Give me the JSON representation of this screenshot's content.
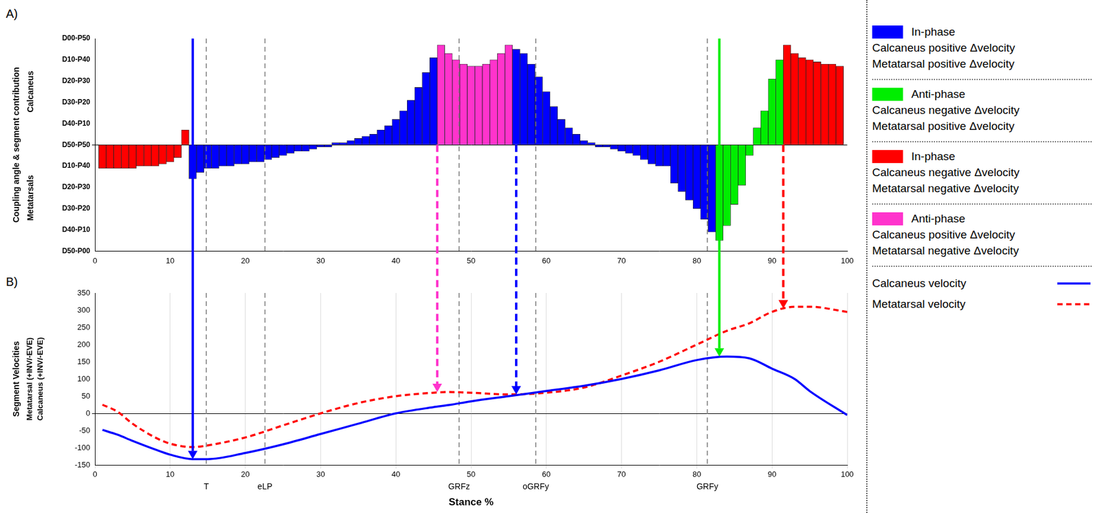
{
  "chart_data": [
    {
      "panel": "A)",
      "type": "bar",
      "y_label": "Coupling angle & segment contribution",
      "y_upper_label": "Calcaneus",
      "y_lower_label": "Metatarsals",
      "x": [
        1,
        2,
        3,
        4,
        5,
        6,
        7,
        8,
        9,
        10,
        11,
        12,
        13,
        14,
        15,
        16,
        17,
        18,
        19,
        20,
        21,
        22,
        23,
        24,
        25,
        26,
        27,
        28,
        29,
        30,
        31,
        32,
        33,
        34,
        35,
        36,
        37,
        38,
        39,
        40,
        41,
        42,
        43,
        44,
        45,
        46,
        47,
        48,
        49,
        50,
        51,
        52,
        53,
        54,
        55,
        56,
        57,
        58,
        59,
        60,
        61,
        62,
        63,
        64,
        65,
        66,
        67,
        68,
        69,
        70,
        71,
        72,
        73,
        74,
        75,
        76,
        77,
        78,
        79,
        80,
        81,
        82,
        83,
        84,
        85,
        86,
        87,
        88,
        89,
        90,
        91,
        92,
        93,
        94,
        95,
        96,
        97,
        98,
        99
      ],
      "values": [
        -11,
        -11,
        -11,
        -11,
        -11,
        -10,
        -10,
        -10,
        -9,
        -8,
        -6,
        7,
        -16,
        -13,
        -11,
        -11,
        -10,
        -10,
        -9,
        -9,
        -8,
        -8,
        -7,
        -6,
        -5,
        -4,
        -3,
        -3,
        -2,
        -1,
        -1,
        1,
        1,
        2,
        3,
        4,
        5,
        7,
        9,
        12,
        16,
        21,
        27,
        34,
        41,
        47,
        43,
        40,
        38,
        37,
        37,
        38,
        40,
        43,
        47,
        45,
        43,
        38,
        32,
        25,
        18,
        12,
        8,
        5,
        2,
        1,
        -1,
        -1,
        -2,
        -3,
        -4,
        -5,
        -7,
        -9,
        -10,
        -10,
        -18,
        -22,
        -26,
        -30,
        -35,
        -41,
        -45,
        -38,
        -28,
        -19,
        -5,
        8,
        16,
        31,
        40,
        47,
        43,
        41,
        40,
        39,
        38,
        38,
        37
      ],
      "colors": [
        "#ff0000",
        "#ff0000",
        "#ff0000",
        "#ff0000",
        "#ff0000",
        "#ff0000",
        "#ff0000",
        "#ff0000",
        "#ff0000",
        "#ff0000",
        "#ff0000",
        "#ff0000",
        "#0000ff",
        "#0000ff",
        "#0000ff",
        "#0000ff",
        "#0000ff",
        "#0000ff",
        "#0000ff",
        "#0000ff",
        "#0000ff",
        "#0000ff",
        "#0000ff",
        "#0000ff",
        "#0000ff",
        "#0000ff",
        "#0000ff",
        "#0000ff",
        "#0000ff",
        "#0000ff",
        "#0000ff",
        "#0000ff",
        "#0000ff",
        "#0000ff",
        "#0000ff",
        "#0000ff",
        "#0000ff",
        "#0000ff",
        "#0000ff",
        "#0000ff",
        "#0000ff",
        "#0000ff",
        "#0000ff",
        "#0000ff",
        "#0000ff",
        "#ff33cc",
        "#ff33cc",
        "#ff33cc",
        "#ff33cc",
        "#ff33cc",
        "#ff33cc",
        "#ff33cc",
        "#ff33cc",
        "#ff33cc",
        "#ff33cc",
        "#0000ff",
        "#0000ff",
        "#0000ff",
        "#0000ff",
        "#0000ff",
        "#0000ff",
        "#0000ff",
        "#0000ff",
        "#0000ff",
        "#0000ff",
        "#0000ff",
        "#0000ff",
        "#0000ff",
        "#0000ff",
        "#0000ff",
        "#0000ff",
        "#0000ff",
        "#0000ff",
        "#0000ff",
        "#0000ff",
        "#0000ff",
        "#0000ff",
        "#0000ff",
        "#0000ff",
        "#0000ff",
        "#0000ff",
        "#0000ff",
        "#00ee00",
        "#00ee00",
        "#00ee00",
        "#00ee00",
        "#00ee00",
        "#00ee00",
        "#00ee00",
        "#00ee00",
        "#00ee00",
        "#ff0000",
        "#ff0000",
        "#ff0000",
        "#ff0000",
        "#ff0000",
        "#ff0000",
        "#ff0000",
        "#ff0000"
      ],
      "xlim": [
        0,
        100
      ],
      "xticks": [
        0,
        10,
        20,
        30,
        40,
        50,
        60,
        70,
        80,
        90,
        100
      ],
      "ylim": [
        -50,
        50
      ],
      "yticks": [
        {
          "value": -50,
          "label": "D50-P00"
        },
        {
          "value": -40,
          "label": "D40-P10"
        },
        {
          "value": -30,
          "label": "D30-P20"
        },
        {
          "value": -20,
          "label": "D20-P30"
        },
        {
          "value": -10,
          "label": "D10-P40"
        },
        {
          "value": 0,
          "label": "D50-P50"
        },
        {
          "value": 10,
          "label": "D40-P10"
        },
        {
          "value": 20,
          "label": "D30-P20"
        },
        {
          "value": 30,
          "label": "D20-P30"
        },
        {
          "value": 40,
          "label": "D10-P40"
        },
        {
          "value": 50,
          "label": "D00-P50"
        }
      ],
      "grid": false
    },
    {
      "panel": "B)",
      "type": "line",
      "x_label": "Stance %",
      "y_label": "Segment Velocities",
      "y_sublabels": [
        "Metatarsal (+INV/-EVE)",
        "Calcaneus (+INV/-EVE)"
      ],
      "x": [
        1,
        3,
        5,
        8,
        10,
        13,
        15,
        20,
        25,
        30,
        35,
        40,
        45,
        47,
        50,
        55,
        60,
        65,
        70,
        75,
        80,
        84,
        87,
        90,
        93,
        95,
        100
      ],
      "series": [
        {
          "name": "Calcaneus velocity",
          "color": "#0000ff",
          "line_style": "solid",
          "values": [
            -48,
            -62,
            -80,
            -105,
            -120,
            -133,
            -133,
            -115,
            -90,
            -60,
            -30,
            0,
            18,
            24,
            35,
            50,
            65,
            80,
            100,
            125,
            155,
            165,
            160,
            130,
            100,
            65,
            -5
          ]
        },
        {
          "name": "Metatarsal velocity",
          "color": "#ff0000",
          "line_style": "dashed",
          "values": [
            25,
            5,
            -30,
            -70,
            -88,
            -98,
            -93,
            -70,
            -35,
            0,
            30,
            50,
            60,
            62,
            60,
            55,
            60,
            75,
            110,
            150,
            200,
            240,
            262,
            295,
            310,
            310,
            295
          ]
        }
      ],
      "xlim": [
        0,
        100
      ],
      "xticks": [
        0,
        10,
        20,
        30,
        40,
        50,
        60,
        70,
        80,
        90,
        100
      ],
      "ylim": [
        -150,
        350
      ],
      "yticks": [
        -150,
        -100,
        -50,
        0,
        50,
        100,
        150,
        200,
        250,
        300,
        350
      ],
      "grid": true,
      "legend": "right"
    }
  ],
  "events": [
    {
      "label": "T",
      "x": 14.8
    },
    {
      "label": "eLP",
      "x": 22.6
    },
    {
      "label": "GRFz",
      "x": 48.4
    },
    {
      "label": "oGRFy",
      "x": 58.6
    },
    {
      "label": "GRFy",
      "x": 81.4
    }
  ],
  "arrows": [
    {
      "x": 13,
      "y": -133,
      "color": "#0000ff",
      "line_style": "solid"
    },
    {
      "x": 45.5,
      "y": 62,
      "color": "#ff33cc",
      "line_style": "dashed"
    },
    {
      "x": 56,
      "y": 55,
      "color": "#0000ff",
      "line_style": "dashed"
    },
    {
      "x": 83,
      "y": 165,
      "color": "#00ee00",
      "line_style": "solid"
    },
    {
      "x": 91.5,
      "y": 305,
      "color": "#ff0000",
      "line_style": "dashed"
    }
  ],
  "legend_entries": [
    {
      "label": "In-phase",
      "color": "#0000ff",
      "lines": [
        "Calcaneus positive Δvelocity",
        "Metatarsal positive Δvelocity"
      ]
    },
    {
      "label": "Anti-phase",
      "color": "#00ee00",
      "lines": [
        "Calcaneus negative Δvelocity",
        "Metatarsal positive Δvelocity"
      ]
    },
    {
      "label": "In-phase",
      "color": "#ff0000",
      "lines": [
        "Calcaneus negative Δvelocity",
        "Metatarsal negative Δvelocity"
      ]
    },
    {
      "label": "Anti-phase",
      "color": "#ff33cc",
      "lines": [
        "Calcaneus positive Δvelocity",
        "Metatarsal negative Δvelocity"
      ]
    }
  ]
}
